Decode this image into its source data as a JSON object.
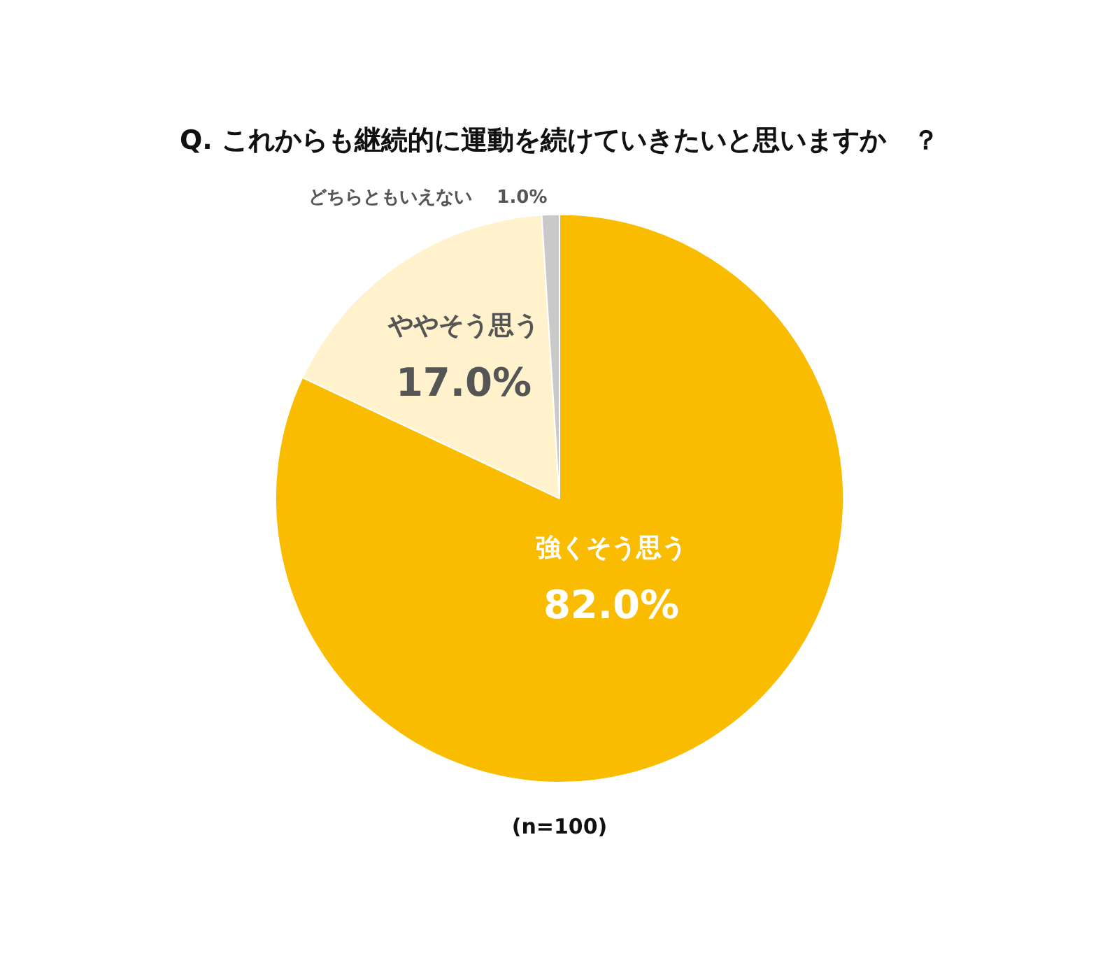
{
  "chart_data": {
    "type": "pie",
    "title": "Q. これからも継続的に運動を続けていきたいと思いますか　？",
    "categories": [
      "強くそう思う",
      "ややそう思う",
      "どちらともいえない"
    ],
    "values": [
      82.0,
      17.0,
      1.0
    ],
    "value_labels": [
      "82.0%",
      "17.0%",
      "1.0%"
    ],
    "colors": [
      "#f9bc00",
      "#fff2cc",
      "#c9c9c9"
    ],
    "legend": false,
    "annotations": [
      "(n=100)"
    ]
  }
}
